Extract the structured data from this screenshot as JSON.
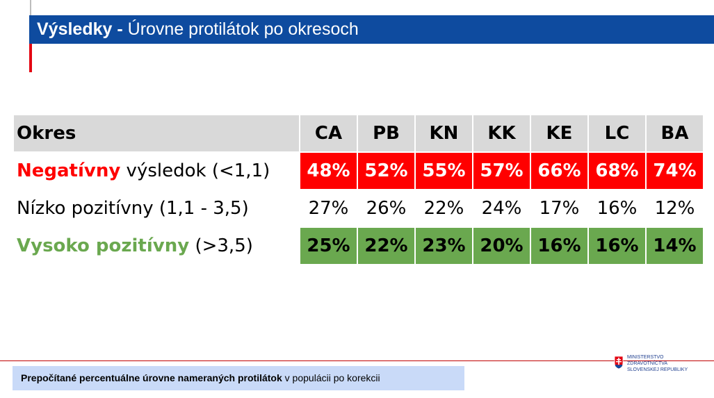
{
  "title": {
    "bold": "Výsledky -",
    "rest": "Úrovne protilátok po okresoch"
  },
  "table": {
    "header": {
      "label": "Okres",
      "districts": [
        "CA",
        "PB",
        "KN",
        "KK",
        "KE",
        "LC",
        "BA"
      ]
    },
    "rows": [
      {
        "label_highlight": "Negatívny",
        "label_rest": " výsledok (<1,1)",
        "values": [
          "48%",
          "52%",
          "55%",
          "57%",
          "66%",
          "68%",
          "74%"
        ]
      },
      {
        "label_highlight": "",
        "label_rest": "Nízko pozitívny (1,1 - 3,5)",
        "values": [
          "27%",
          "26%",
          "22%",
          "24%",
          "17%",
          "16%",
          "12%"
        ]
      },
      {
        "label_highlight": "Vysoko pozitívny",
        "label_rest": " (>3,5)",
        "values": [
          "25%",
          "22%",
          "23%",
          "20%",
          "16%",
          "16%",
          "14%"
        ]
      }
    ]
  },
  "footer": {
    "bold": "Prepočítané percentuálne úrovne nameraných protilátok",
    "rest": " v populácii po korekcii"
  },
  "logo": {
    "lines": [
      "MINISTERSTVO",
      "ZDRAVOTNÍCTVA",
      "SLOVENSKEJ REPUBLIKY"
    ],
    "icon": "slovak-coat-of-arms-icon"
  },
  "colors": {
    "title_bar": "#0e4b9f",
    "negative": "#ff0000",
    "high_positive": "#6aa84f",
    "header": "#d9d9d9",
    "footer_box": "#c9daf8",
    "accent": "#e30613"
  }
}
